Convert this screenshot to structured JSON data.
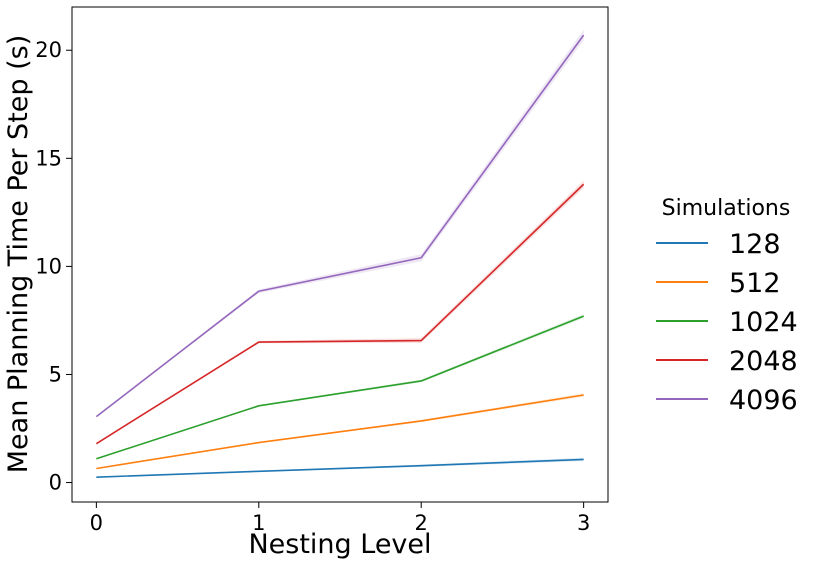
{
  "chart_data": {
    "type": "line",
    "xlabel": "Nesting Level",
    "ylabel": "Mean Planning Time Per Step (s)",
    "x": [
      0,
      1,
      2,
      3
    ],
    "x_ticks": [
      "0",
      "1",
      "2",
      "3"
    ],
    "y_ticks": [
      "0",
      "5",
      "10",
      "15",
      "20"
    ],
    "xlim": [
      -0.15,
      3.15
    ],
    "ylim": [
      -0.9,
      22.0
    ],
    "grid": false,
    "legend": {
      "title": "Simulations",
      "placement": "right-outside"
    },
    "series": [
      {
        "name": "128",
        "color": "#1f77b4",
        "values": [
          0.25,
          0.52,
          0.78,
          1.07
        ]
      },
      {
        "name": "512",
        "color": "#ff7f0e",
        "values": [
          0.65,
          1.85,
          2.85,
          4.05
        ]
      },
      {
        "name": "1024",
        "color": "#2ca02c",
        "values": [
          1.1,
          3.55,
          4.7,
          7.7
        ]
      },
      {
        "name": "2048",
        "color": "#d62728",
        "values": [
          1.8,
          6.5,
          6.57,
          13.8
        ]
      },
      {
        "name": "4096",
        "color": "#9467bd",
        "values": [
          3.05,
          8.85,
          10.4,
          20.7
        ]
      }
    ]
  }
}
